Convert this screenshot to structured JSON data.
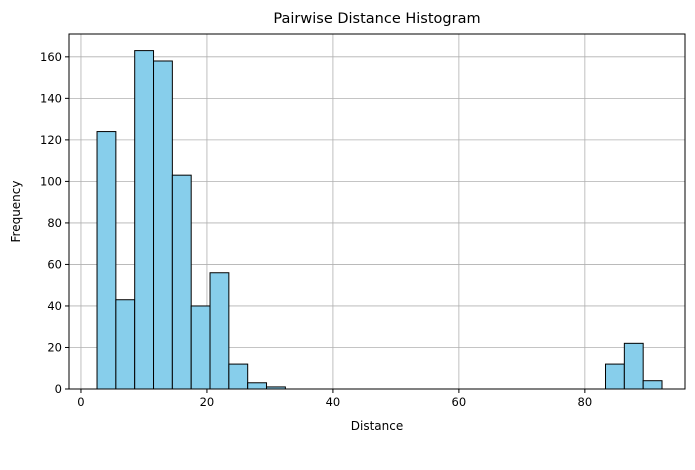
{
  "chart_data": {
    "type": "bar",
    "title": "Pairwise Distance Histogram",
    "xlabel": "Distance",
    "ylabel": "Frequency",
    "xlim": [
      -1.9,
      95.9
    ],
    "ylim": [
      0,
      171
    ],
    "xticks": [
      0,
      20,
      40,
      60,
      80
    ],
    "yticks": [
      0,
      20,
      40,
      60,
      80,
      100,
      120,
      140,
      160
    ],
    "grid": true,
    "bar_color": "#87ceeb",
    "edge_color": "#000000",
    "bin_width": 2.99,
    "bin_starts": [
      2.55,
      5.54,
      8.53,
      11.52,
      14.51,
      17.5,
      20.49,
      23.48,
      26.47,
      29.46,
      32.45,
      35.44,
      38.43,
      41.42,
      44.41,
      47.4,
      50.39,
      53.38,
      56.37,
      59.36,
      62.35,
      65.34,
      68.33,
      71.32,
      74.31,
      77.3,
      80.29,
      83.28,
      86.27,
      89.26
    ],
    "values": [
      124,
      43,
      163,
      158,
      103,
      40,
      56,
      12,
      3,
      1,
      0,
      0,
      0,
      0,
      0,
      0,
      0,
      0,
      0,
      0,
      0,
      0,
      0,
      0,
      0,
      0,
      0,
      12,
      22,
      4
    ]
  }
}
